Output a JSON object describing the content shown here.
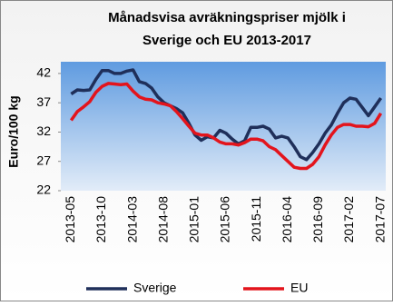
{
  "chart_data": {
    "type": "line",
    "title": "Månadsvisa avräkningspriser mjölk i",
    "subtitle": "Sverige och EU 2013-2017",
    "y_label": "Euro/100 kg",
    "categories": [
      "2013-05",
      null,
      null,
      null,
      null,
      "2013-10",
      null,
      null,
      null,
      null,
      "2014-03",
      null,
      null,
      null,
      null,
      "2014-08",
      null,
      null,
      null,
      null,
      "2015-01",
      null,
      null,
      null,
      null,
      "2015-06",
      null,
      null,
      null,
      null,
      "2015-11",
      null,
      null,
      null,
      null,
      "2016-04",
      null,
      null,
      null,
      null,
      "2016-09",
      null,
      null,
      null,
      null,
      "2017-02",
      null,
      null,
      null,
      null,
      "2017-07"
    ],
    "series": [
      {
        "name": "Sverige",
        "color": "#1f2f5a",
        "values": [
          38.5,
          39.2,
          39.1,
          39.2,
          41.0,
          42.5,
          42.5,
          42.0,
          42.0,
          42.4,
          42.6,
          40.6,
          40.3,
          39.5,
          38.0,
          37.0,
          36.5,
          36.0,
          35.3,
          33.5,
          31.5,
          30.6,
          31.2,
          31.0,
          32.3,
          31.8,
          30.8,
          30.0,
          30.5,
          32.8,
          32.8,
          33.0,
          32.5,
          31.0,
          31.3,
          31.0,
          29.5,
          27.8,
          27.3,
          28.5,
          30.0,
          31.8,
          33.2,
          35.2,
          37.0,
          37.8,
          37.6,
          36.2,
          34.8,
          36.3,
          37.8
        ]
      },
      {
        "name": "EU",
        "color": "#e3141c",
        "values": [
          34.0,
          35.5,
          36.3,
          37.2,
          38.8,
          39.8,
          40.3,
          40.2,
          40.1,
          40.2,
          39.0,
          38.0,
          37.6,
          37.5,
          37.0,
          36.8,
          36.5,
          35.5,
          34.3,
          33.0,
          31.8,
          31.5,
          31.5,
          31.0,
          30.3,
          30.0,
          30.0,
          29.8,
          30.2,
          30.8,
          30.8,
          30.5,
          29.5,
          29.0,
          28.0,
          27.0,
          26.0,
          25.8,
          25.8,
          26.5,
          27.8,
          29.8,
          31.5,
          32.8,
          33.3,
          33.3,
          33.0,
          33.0,
          32.9,
          33.5,
          35.2
        ]
      }
    ],
    "ylim": [
      22,
      44
    ],
    "yticks": [
      22,
      27,
      32,
      37,
      42
    ],
    "grid": false,
    "legend": "bottom"
  }
}
